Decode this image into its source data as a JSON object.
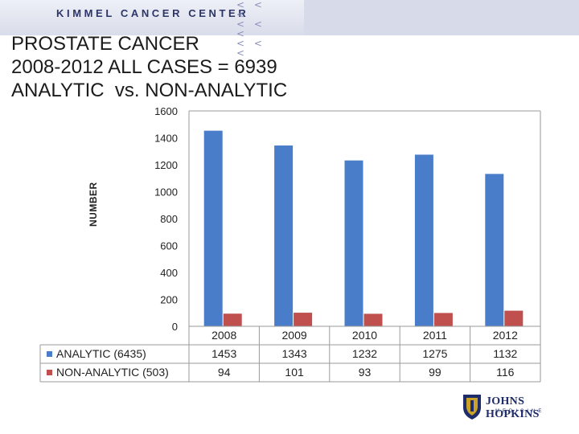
{
  "header": {
    "org_name": "KIMMEL CANCER CENTER",
    "chevrons": "<<< <<< <<<"
  },
  "slide": {
    "title_lines": [
      "PROSTATE CANCER",
      "2008-2012 ALL CASES = 6939",
      "ANALYTIC  vs. NON-ANALYTIC"
    ]
  },
  "logo": {
    "name": "JOHNS HOPKINS",
    "subtitle": "MEDICINE"
  },
  "chart_data": {
    "type": "bar",
    "categories": [
      "2008",
      "2009",
      "2010",
      "2011",
      "2012"
    ],
    "series": [
      {
        "name": "ANALYTIC (6435)",
        "values": [
          1453,
          1343,
          1232,
          1275,
          1132
        ],
        "color": "#4a7dc9"
      },
      {
        "name": "NON-ANALYTIC (503)",
        "values": [
          94,
          101,
          93,
          99,
          116
        ],
        "color": "#c0504d"
      }
    ],
    "ylabel": "NUMBER",
    "ylim": [
      0,
      1600
    ],
    "yticks": [
      0,
      200,
      400,
      600,
      800,
      1000,
      1200,
      1400,
      1600
    ],
    "grid": false,
    "legend": "data-table-bottom"
  }
}
